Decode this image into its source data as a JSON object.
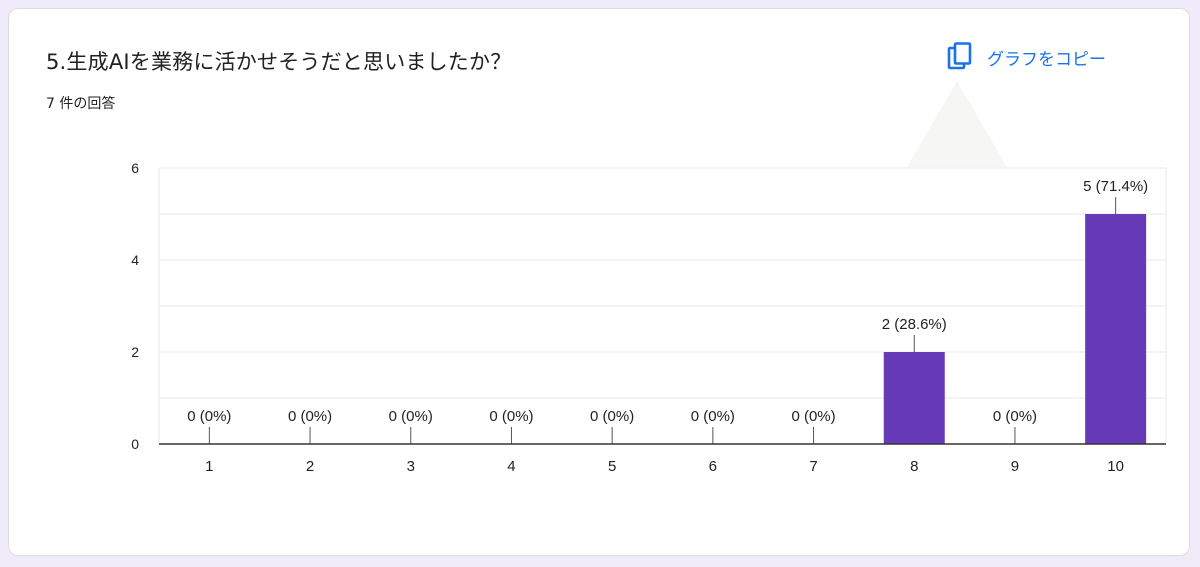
{
  "header": {
    "question": "5.生成AIを業務に活かせそうだと思いましたか？",
    "response_count": "7 件の回答",
    "copy_label": "グラフをコピー",
    "copy_icon": "copy-icon",
    "accent": "#1a73e8"
  },
  "colors": {
    "bar": "#673ab7",
    "grid": "#e8e8e8",
    "axis": "#333333",
    "text": "#222222"
  },
  "chart_data": {
    "type": "bar",
    "categories": [
      "1",
      "2",
      "3",
      "4",
      "5",
      "6",
      "7",
      "8",
      "9",
      "10"
    ],
    "values": [
      0,
      0,
      0,
      0,
      0,
      0,
      0,
      2,
      0,
      5
    ],
    "data_labels": [
      "0 (0%)",
      "0 (0%)",
      "0 (0%)",
      "0 (0%)",
      "0 (0%)",
      "0 (0%)",
      "0 (0%)",
      "2 (28.6%)",
      "0 (0%)",
      "5 (71.4%)"
    ],
    "y_ticks": [
      "0",
      "2",
      "4",
      "6"
    ],
    "ylim": [
      0,
      6
    ],
    "grid": true,
    "legend": "none"
  }
}
